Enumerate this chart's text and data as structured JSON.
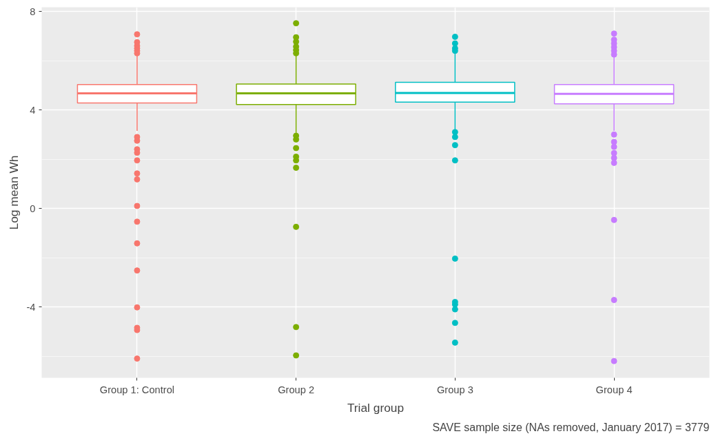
{
  "chart_data": {
    "type": "box",
    "xlabel": "Trial group",
    "ylabel": "Log mean Wh",
    "categories": [
      "Group 1: Control",
      "Group 2",
      "Group 3",
      "Group 4"
    ],
    "colors": [
      "#f8766d",
      "#7cae00",
      "#00bfc4",
      "#c77cff"
    ],
    "boxes": [
      {
        "low": 3.15,
        "q1": 4.28,
        "median": 4.67,
        "q3": 5.03,
        "high": 6.2,
        "outliers": [
          7.07,
          6.75,
          6.6,
          6.5,
          6.4,
          6.3,
          2.9,
          2.75,
          2.4,
          2.26,
          1.95,
          1.42,
          1.18,
          0.1,
          -0.54,
          -1.42,
          -2.52,
          -4.02,
          -4.85,
          -4.94,
          -6.1
        ]
      },
      {
        "low": 3.05,
        "q1": 4.22,
        "median": 4.67,
        "q3": 5.05,
        "high": 6.2,
        "outliers": [
          7.52,
          6.95,
          6.77,
          6.57,
          6.43,
          6.3,
          2.95,
          2.8,
          2.45,
          2.1,
          1.95,
          1.65,
          -0.75,
          -4.82,
          -5.97
        ]
      },
      {
        "low": 3.2,
        "q1": 4.32,
        "median": 4.69,
        "q3": 5.12,
        "high": 6.3,
        "outliers": [
          6.97,
          6.7,
          6.5,
          6.4,
          3.1,
          2.9,
          2.57,
          1.95,
          -2.04,
          -3.8,
          -3.9,
          -4.1,
          -4.65,
          -5.45
        ]
      },
      {
        "low": 3.15,
        "q1": 4.25,
        "median": 4.65,
        "q3": 5.03,
        "high": 6.2,
        "outliers": [
          7.1,
          6.85,
          6.7,
          6.55,
          6.4,
          6.25,
          3.0,
          2.7,
          2.5,
          2.25,
          2.05,
          1.85,
          -0.47,
          -3.72,
          -6.2
        ]
      }
    ],
    "ylim": [
      -6.88,
      8.17
    ],
    "yticks": [
      -4,
      0,
      4,
      8
    ],
    "grid": true,
    "annotations": [
      "SAVE sample size (NAs removed, January 2017) = 3779"
    ]
  }
}
